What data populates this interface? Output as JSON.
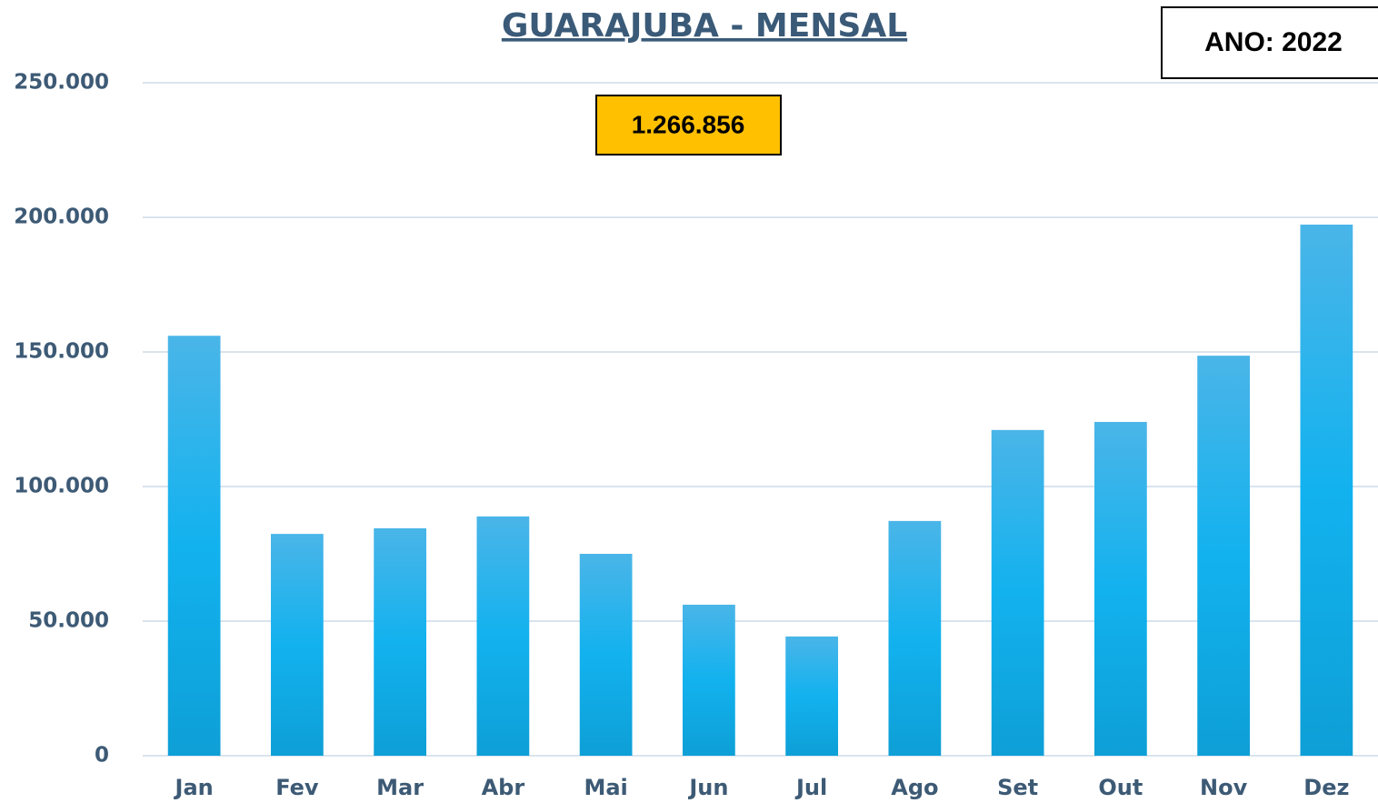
{
  "chart_data": {
    "type": "bar",
    "title": "GUARAJUBA - MENSAL",
    "annotations": [
      "1.266.856",
      "ANO: 2022"
    ],
    "categories": [
      "Jan",
      "Fev",
      "Mar",
      "Abr",
      "Mai",
      "Jun",
      "Jul",
      "Ago",
      "Set",
      "Out",
      "Nov",
      "Dez"
    ],
    "values": [
      156000,
      82400,
      84500,
      88900,
      75000,
      56100,
      44300,
      87200,
      121000,
      124000,
      148600,
      197300
    ],
    "color": "#12aee9",
    "ylim": [
      0,
      250000
    ],
    "yticks": [
      0,
      {
        "value": 50000,
        "label": "50.000"
      },
      {
        "value": 100000,
        "label": "100.000"
      },
      {
        "value": 150000,
        "label": "150.000"
      },
      {
        "value": 200000,
        "label": "200.000"
      },
      {
        "value": 250000,
        "label": "250.000"
      }
    ],
    "grid": true
  }
}
